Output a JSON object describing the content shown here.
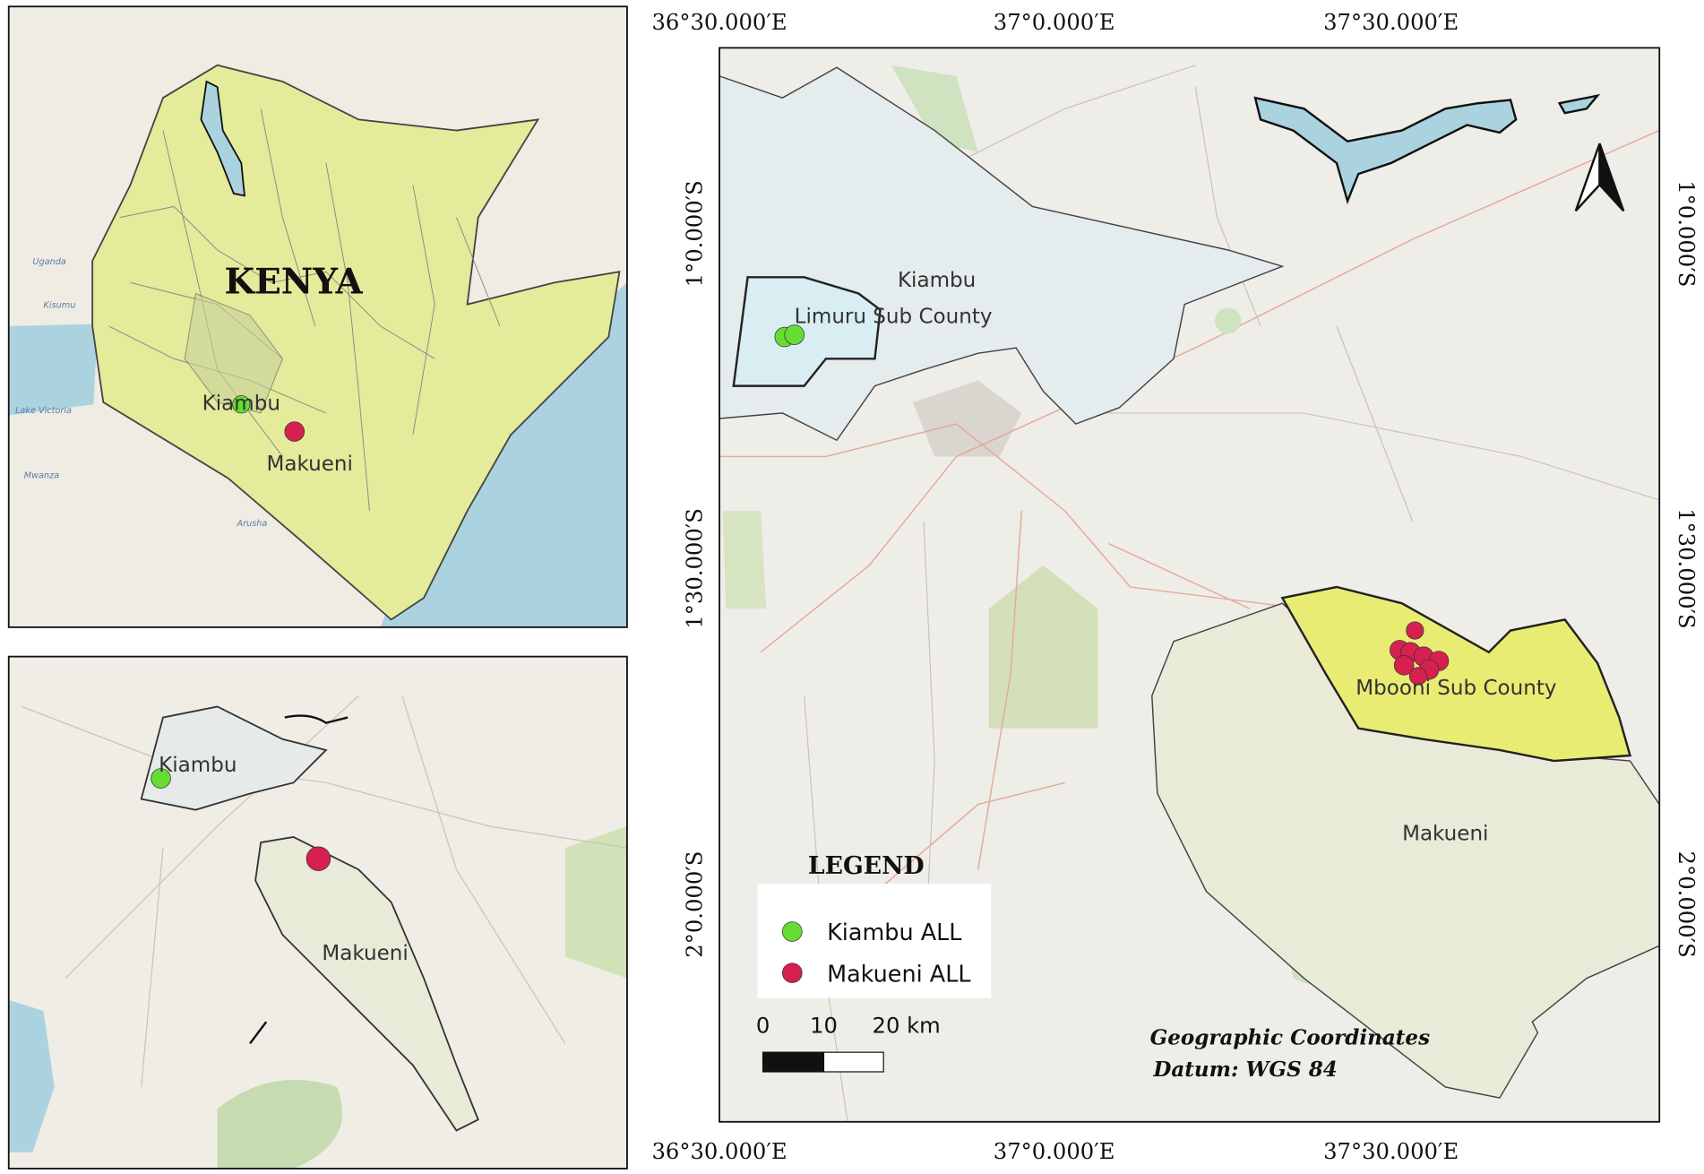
{
  "inset_kenya": {
    "title": "KENYA",
    "labels": [
      "Kiambu",
      "Makueni"
    ],
    "basemap_labels": [
      "Uganda",
      "Kisumu",
      "Lake Victoria",
      "Mwanza",
      "Arusha"
    ]
  },
  "inset_region": {
    "labels": [
      "Kiambu",
      "Makueni"
    ]
  },
  "main_map": {
    "x_labels": [
      "36°30.000′E",
      "37°0.000′E",
      "37°30.000′E"
    ],
    "y_labels": [
      "1°0.000′S",
      "1°30.000′S",
      "2°0.000′S"
    ],
    "areas": {
      "kiambu": "Kiambu",
      "limuru": "Limuru Sub County",
      "mbooni": "Mbooni  Sub County",
      "makueni": "Makueni"
    },
    "legend": {
      "title": "LEGEND",
      "items": [
        {
          "label": "Kiambu ALL",
          "color": "#66dd33"
        },
        {
          "label": "Makueni ALL",
          "color": "#d6204f"
        }
      ]
    },
    "scale_bar": {
      "labels": [
        "0",
        "10",
        "20 km"
      ]
    },
    "crs_note": [
      "Geographic Coordinates",
      "Datum: WGS 84"
    ]
  }
}
